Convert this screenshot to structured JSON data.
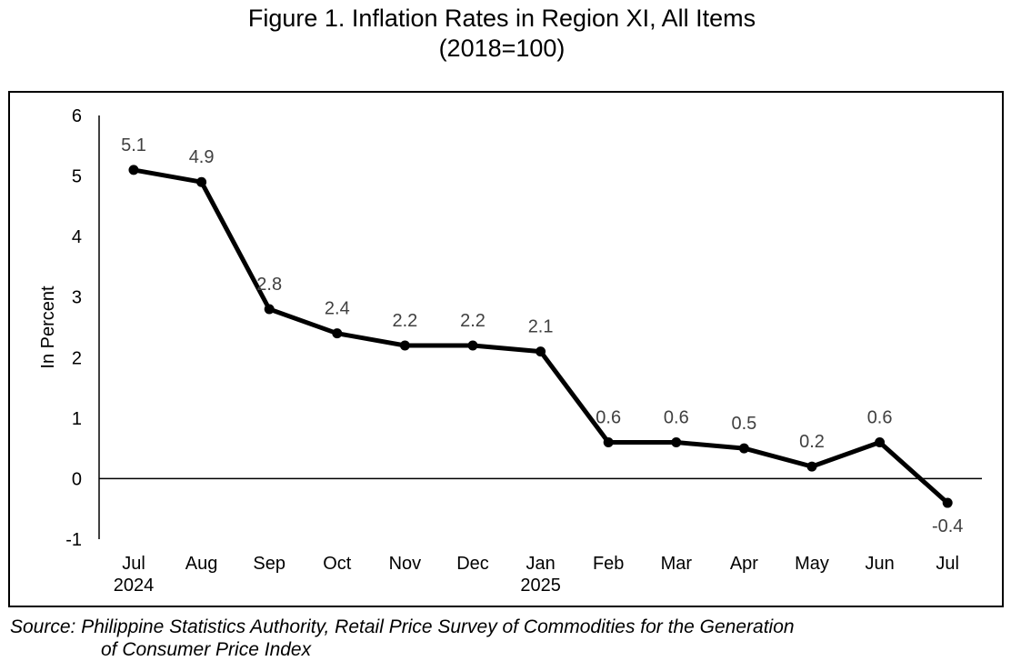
{
  "title": "Figure 1. Inflation Rates in Region XI, All Items",
  "subtitle": "(2018=100)",
  "source_line1": "Source: Philippine Statistics Authority, Retail Price Survey of Commodities for the Generation",
  "source_line2": "of Consumer Price Index",
  "chart_data": {
    "type": "line",
    "ylabel": "In Percent",
    "ylim": [
      -1,
      6
    ],
    "yticks": [
      6,
      5,
      4,
      3,
      2,
      1,
      0,
      -1
    ],
    "categories": [
      "Jul",
      "Aug",
      "Sep",
      "Oct",
      "Nov",
      "Dec",
      "Jan",
      "Feb",
      "Mar",
      "Apr",
      "May",
      "Jun",
      "Jul"
    ],
    "category_sublabels": [
      "2024",
      "",
      "",
      "",
      "",
      "",
      "2025",
      "",
      "",
      "",
      "",
      "",
      ""
    ],
    "series": [
      {
        "values": [
          5.1,
          4.9,
          2.8,
          2.4,
          2.2,
          2.2,
          2.1,
          0.6,
          0.6,
          0.5,
          0.2,
          0.6,
          -0.4
        ],
        "color": "#000000"
      }
    ],
    "data_labels": [
      "5.1",
      "4.9",
      "2.8",
      "2.4",
      "2.2",
      "2.2",
      "2.1",
      "0.6",
      "0.6",
      "0.5",
      "0.2",
      "0.6",
      "-0.4"
    ],
    "grid": false,
    "legend": "none"
  }
}
